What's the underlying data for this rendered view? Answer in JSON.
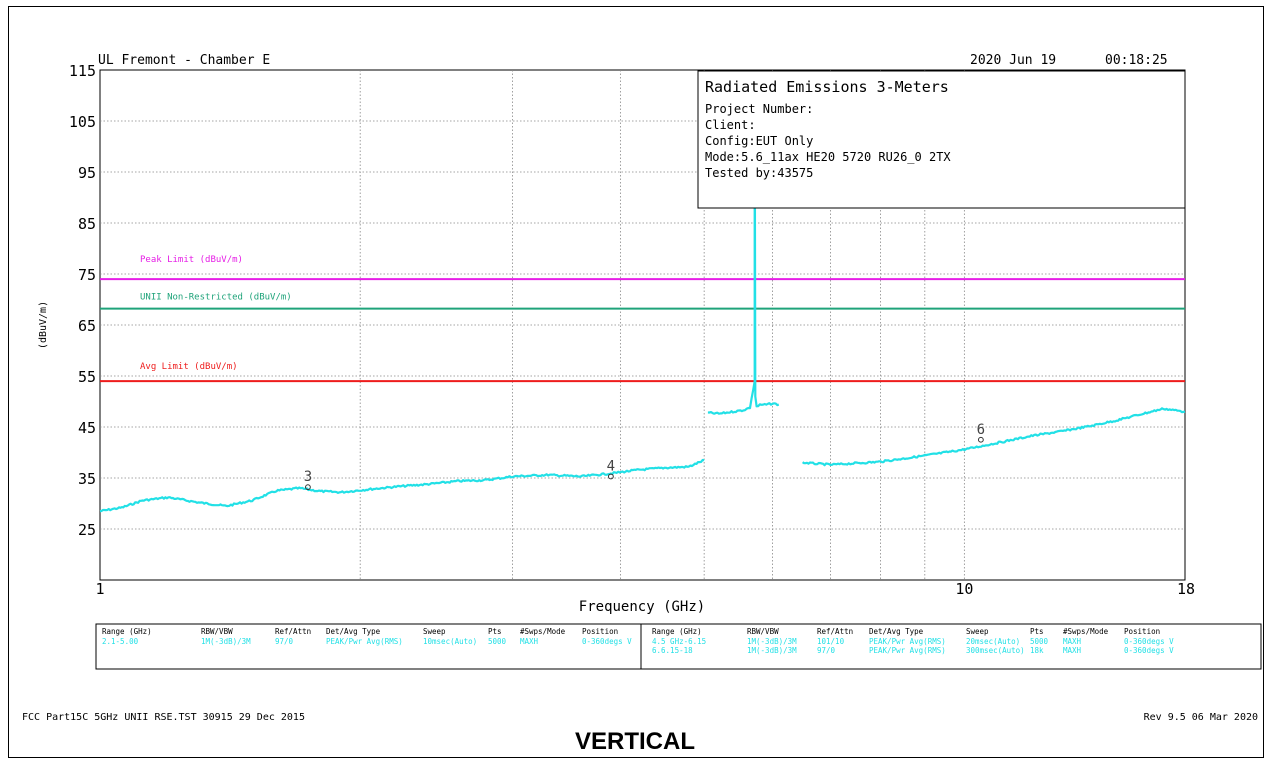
{
  "header": {
    "site": "UL Fremont - Chamber E",
    "date": "2020 Jun 19",
    "time": "00:18:25"
  },
  "info_box": {
    "title": "Radiated Emissions 3-Meters",
    "lines": [
      "Project Number:",
      "Client:",
      "Config:EUT Only",
      "Mode:5.6_11ax HE20 5720 RU26_0 2TX",
      "Tested by:43575"
    ]
  },
  "colors": {
    "trace": "#22e0e6",
    "peak_limit": "#e61ee6",
    "unii_limit": "#1fa37a",
    "avg_limit": "#ee1c1c",
    "grid": "#888888"
  },
  "chart_data": {
    "type": "line",
    "xlabel": "Frequency (GHz)",
    "ylabel": "(dBuV/m)",
    "x_scale": "log",
    "xlim": [
      1,
      18
    ],
    "ylim": [
      15,
      115
    ],
    "x_ticks": [
      {
        "value": 1,
        "label": "1"
      },
      {
        "value": 10,
        "label": "10"
      },
      {
        "value": 18,
        "label": "18"
      }
    ],
    "x_minor": [
      2,
      3,
      4,
      5,
      6,
      7,
      8,
      9
    ],
    "y_ticks": [
      115,
      105,
      95,
      85,
      75,
      65,
      55,
      45,
      35,
      25
    ],
    "grid": true,
    "limit_lines": [
      {
        "name": "Peak Limit (dBuV/m)",
        "value": 74,
        "color": "#e61ee6"
      },
      {
        "name": "UNII Non-Restricted (dBuV/m)",
        "value": 68.2,
        "color": "#1fa37a"
      },
      {
        "name": "Avg Limit (dBuV/m)",
        "value": 54,
        "color": "#ee1c1c"
      }
    ],
    "series": [
      {
        "segment": "2.1-5.00 GHz",
        "x": [
          1.0,
          1.06,
          1.12,
          1.2,
          1.3,
          1.4,
          1.5,
          1.6,
          1.7,
          1.8,
          1.9,
          2.0,
          2.2,
          2.4,
          2.6,
          2.8,
          3.0,
          3.3,
          3.6,
          3.9,
          4.2,
          4.5,
          4.8,
          5.0
        ],
        "y": [
          28.5,
          29.2,
          30.6,
          31.2,
          30.2,
          29.5,
          30.6,
          32.5,
          33.0,
          32.4,
          32.2,
          32.6,
          33.3,
          33.8,
          34.4,
          34.6,
          35.3,
          35.6,
          35.3,
          35.9,
          36.6,
          37.0,
          37.2,
          38.5
        ]
      },
      {
        "segment": "4.5 GHz-6.15 GHz",
        "x": [
          5.05,
          5.2,
          5.4,
          5.55,
          5.65,
          5.72,
          5.72,
          5.73,
          5.75,
          5.8,
          5.9,
          6.0,
          6.1
        ],
        "y": [
          47.8,
          47.6,
          48.0,
          48.3,
          48.8,
          54.0,
          110.0,
          51.0,
          49.0,
          49.3,
          49.4,
          49.6,
          49.4
        ]
      },
      {
        "segment": "6.15-18 GHz",
        "x": [
          6.5,
          7.0,
          7.5,
          8.0,
          8.5,
          9.0,
          9.5,
          10.0,
          10.5,
          11.0,
          12.0,
          13.0,
          14.0,
          15.0,
          16.0,
          17.0,
          18.0
        ],
        "y": [
          38.0,
          37.6,
          37.9,
          38.2,
          38.8,
          39.4,
          40.0,
          40.6,
          41.3,
          42.0,
          43.3,
          44.2,
          45.2,
          46.3,
          47.5,
          48.6,
          48.0
        ]
      }
    ],
    "markers": [
      {
        "label": "3",
        "x": 1.74,
        "y": 33.2
      },
      {
        "label": "4",
        "x": 3.9,
        "y": 35.3
      },
      {
        "label": "6",
        "x": 10.45,
        "y": 42.5
      }
    ]
  },
  "settings_table": {
    "headers": [
      "Range (GHz)",
      "RBW/VBW",
      "Ref/Attn",
      "Det/Avg Type",
      "Sweep",
      "Pts",
      "#Swps/Mode",
      "Position"
    ],
    "left_rows": [
      [
        "2.1-5.00",
        "1M(-3dB)/3M",
        "97/0",
        "PEAK/Pwr Avg(RMS)",
        "10msec(Auto)",
        "5000",
        "MAXH",
        "0-360degs V"
      ]
    ],
    "right_rows": [
      [
        "4.5 GHz-6.15",
        "1M(-3dB)/3M",
        "101/10",
        "PEAK/Pwr Avg(RMS)",
        "20msec(Auto)",
        "5000",
        "MAXH",
        "0-360degs V"
      ],
      [
        "6.6.15-18",
        "1M(-3dB)/3M",
        "97/0",
        "PEAK/Pwr Avg(RMS)",
        "300msec(Auto)",
        "18k",
        "MAXH",
        "0-360degs V"
      ]
    ]
  },
  "footer": {
    "left": "FCC Part15C 5GHz UNII RSE.TST 30915 29 Dec 2015",
    "right": "Rev 9.5 06 Mar 2020"
  },
  "caption": "VERTICAL"
}
